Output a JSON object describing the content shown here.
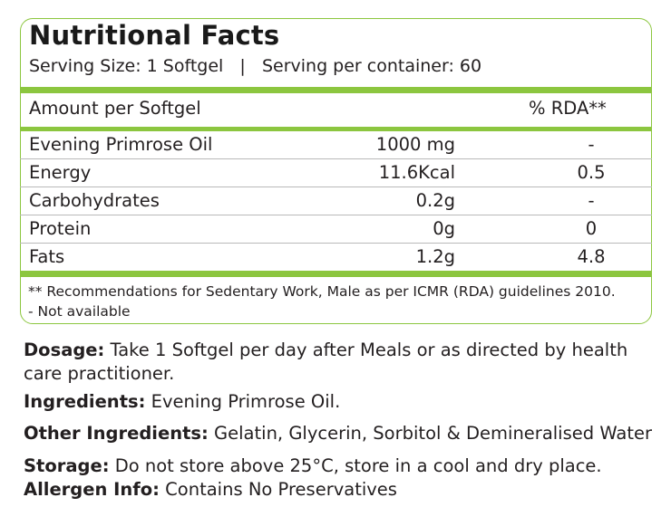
{
  "title": "Nutritional Facts",
  "serving": "Serving Size: 1 Softgel   |   Serving per container: 60",
  "table": {
    "header_label": "Amount per Softgel",
    "header_rda": "% RDA**",
    "rows": [
      {
        "name": "Evening Primrose Oil",
        "amount": "1000 mg",
        "rda": "-"
      },
      {
        "name": "Energy",
        "amount": "11.6Kcal",
        "rda": "0.5"
      },
      {
        "name": "Carbohydrates",
        "amount": "0.2g",
        "rda": "-"
      },
      {
        "name": "Protein",
        "amount": "0g",
        "rda": "0"
      },
      {
        "name": "Fats",
        "amount": "1.2g",
        "rda": "4.8"
      }
    ]
  },
  "footnotes": [
    "** Recommendations for Sedentary Work, Male as per ICMR (RDA) guidelines 2010.",
    "- Not available"
  ],
  "info": {
    "dosage_label": "Dosage:",
    "dosage_text": " Take 1 Softgel per day after Meals or as directed by health care practitioner.",
    "ingredients_label": "Ingredients:",
    "ingredients_text": " Evening Primrose Oil.",
    "other_label": "Other Ingredients:",
    "other_text": " Gelatin, Glycerin, Sorbitol & Demineralised Water",
    "storage_label": "Storage:",
    "storage_text": " Do not store above 25°C, store in a cool and dry place.",
    "allergen_label": "Allergen Info:",
    "allergen_text": " Contains No Preservatives"
  },
  "colors": {
    "accent": "#8cc63f",
    "text": "#231f20"
  }
}
